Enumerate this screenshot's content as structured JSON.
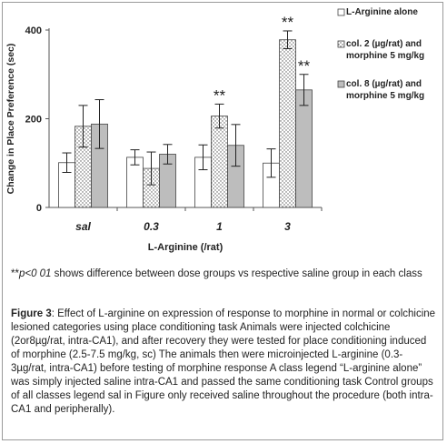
{
  "chart_data": {
    "type": "bar",
    "categories": [
      "sal",
      "0.3",
      "1",
      "3"
    ],
    "xlabel": "L-Arginine (/rat)",
    "ylabel": "Change in Place Preference (sec)",
    "ylim": [
      0,
      400
    ],
    "yticks": [
      0,
      200,
      400
    ],
    "grid": false,
    "legend_position": "right",
    "series": [
      {
        "name": "L-Arginine alone",
        "color": "#ffffff",
        "pattern": "none",
        "values": [
          101,
          113,
          113,
          100
        ],
        "errors": [
          22,
          17,
          28,
          32
        ]
      },
      {
        "name": "col. 2 (µg/rat) and morphine 5 mg/kg",
        "color": "#ffffff",
        "pattern": "dots",
        "values": [
          183,
          88,
          206,
          378
        ],
        "errors": [
          47,
          37,
          27,
          20
        ]
      },
      {
        "name": "col. 8 (µg/rat) and morphine 5 mg/kg",
        "color": "#bdbdbd",
        "pattern": "none",
        "values": [
          188,
          120,
          140,
          265
        ],
        "errors": [
          55,
          22,
          47,
          35
        ]
      }
    ],
    "annotations": [
      {
        "text": "**",
        "category": "1",
        "series": 1
      },
      {
        "text": "**",
        "category": "3",
        "series": 1
      },
      {
        "text": "**",
        "category": "3",
        "series": 2
      }
    ]
  },
  "note": {
    "mark": "**",
    "italic": "p<0 01",
    "text": " shows difference between dose groups vs respective saline group in each class"
  },
  "caption": {
    "label": "Figure 3",
    "text": ": Effect of L-arginine on expression of response to morphine in normal or colchicine lesioned categories using place conditioning task  Animals were injected colchicine (2or8µg/rat, intra-CA1), and after recovery they were tested for place conditioning induced of morphine (2.5-7.5 mg/kg, sc)  The animals then were microinjected L-arginine (0.3-3µg/rat, intra-CA1) before testing of morphine response  A class legend “L-arginine alone” was simply injected saline intra-CA1 and passed the same conditioning task  Control groups of all classes legend sal in Figure only received saline throughout the procedure (both intra-CA1 and peripherally)."
  }
}
